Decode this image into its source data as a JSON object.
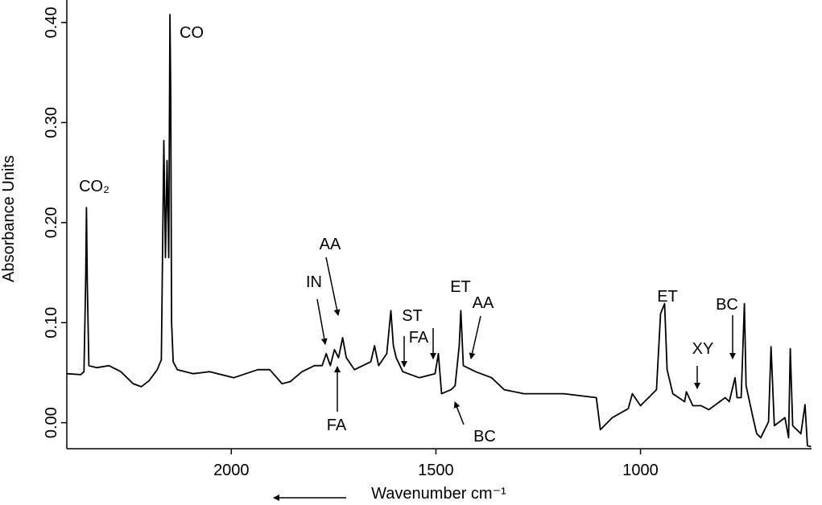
{
  "chart_data": {
    "type": "line",
    "xlabel": "Wavenumber cm⁻¹",
    "ylabel": "Absorbance Units",
    "xlim": [
      2402,
      582
    ],
    "ylim": [
      -0.026,
      0.4225
    ],
    "xticks": [
      2000,
      1500,
      1000
    ],
    "yticks": [
      {
        "value": 0,
        "label": "0.00"
      },
      {
        "value": 0.1,
        "label": "0.10"
      },
      {
        "value": 0.2,
        "label": "0.20"
      },
      {
        "value": 0.3,
        "label": "0.30"
      },
      {
        "value": 0.4,
        "label": "0.40"
      }
    ],
    "annotations": [
      "CO₂",
      "CO",
      "AA",
      "IN",
      "ST",
      "FA",
      "ET",
      "AA",
      "FA",
      "BC",
      "ET",
      "XY",
      "BC"
    ],
    "series": [
      {
        "color": "#000000",
        "x": [
          2402,
          2368,
          2360,
          2356,
          2354,
          2352,
          2348,
          2329,
          2299,
          2270,
          2240,
          2220,
          2201,
          2181,
          2171,
          2165,
          2161,
          2157,
          2153,
          2150,
          2148,
          2146,
          2142,
          2132,
          2093,
          2053,
          1994,
          1935,
          1906,
          1876,
          1856,
          1827,
          1797,
          1778,
          1768,
          1758,
          1748,
          1738,
          1728,
          1719,
          1699,
          1659,
          1650,
          1640,
          1620,
          1610,
          1604,
          1597,
          1581,
          1541,
          1502,
          1494,
          1486,
          1463,
          1453,
          1443,
          1439,
          1433,
          1403,
          1364,
          1333,
          1285,
          1187,
          1108,
          1098,
          1069,
          1030,
          1020,
          1000,
          961,
          951,
          941,
          935,
          921,
          892,
          888,
          872,
          852,
          833,
          793,
          783,
          769,
          764,
          754,
          746,
          742,
          725,
          716,
          706,
          687,
          681,
          673,
          647,
          638,
          634,
          628,
          608,
          598,
          592,
          583
        ],
        "values": [
          0.049,
          0.048,
          0.051,
          0.141,
          0.215,
          0.141,
          0.057,
          0.055,
          0.057,
          0.051,
          0.039,
          0.036,
          0.042,
          0.053,
          0.063,
          0.282,
          0.165,
          0.262,
          0.165,
          0.408,
          0.326,
          0.101,
          0.061,
          0.053,
          0.049,
          0.051,
          0.045,
          0.053,
          0.053,
          0.039,
          0.041,
          0.051,
          0.057,
          0.057,
          0.069,
          0.057,
          0.073,
          0.065,
          0.085,
          0.065,
          0.053,
          0.061,
          0.077,
          0.057,
          0.069,
          0.112,
          0.077,
          0.065,
          0.051,
          0.045,
          0.049,
          0.069,
          0.029,
          0.033,
          0.037,
          0.077,
          0.112,
          0.057,
          0.051,
          0.045,
          0.033,
          0.029,
          0.029,
          0.025,
          -0.007,
          0.005,
          0.014,
          0.029,
          0.017,
          0.033,
          0.109,
          0.119,
          0.053,
          0.029,
          0.021,
          0.031,
          0.017,
          0.017,
          0.013,
          0.025,
          0.021,
          0.045,
          0.025,
          0.025,
          0.119,
          0.037,
          0.005,
          -0.011,
          -0.015,
          0.001,
          0.076,
          -0.003,
          0.005,
          -0.015,
          0.074,
          -0.003,
          -0.011,
          0.018,
          -0.023,
          -0.024
        ]
      }
    ]
  }
}
